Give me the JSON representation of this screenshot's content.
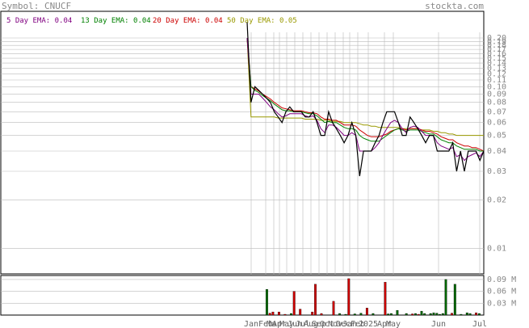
{
  "header": {
    "symbol_label": "Symbol: CNUCF",
    "brand": "stockta.com"
  },
  "legend": [
    {
      "label": "5 Day EMA: 0.04",
      "color": "#800080"
    },
    {
      "label": "13 Day EMA: 0.04",
      "color": "#008000"
    },
    {
      "label": "20 Day EMA: 0.04",
      "color": "#cc0000"
    },
    {
      "label": "50 Day EMA: 0.05",
      "color": "#999900"
    }
  ],
  "colors": {
    "price": "#000000",
    "grid": "#bbbbbb",
    "volume_up": "#006600",
    "volume_down": "#cc0000",
    "axis_text": "#888888"
  },
  "chart_data": [
    {
      "type": "line",
      "scale": "log",
      "ylim": [
        0.006,
        0.2
      ],
      "y_ticks": [
        "0.20",
        "0.19",
        "0.18",
        "0.17",
        "0.16",
        "0.15",
        "0.14",
        "0.13",
        "0.12",
        "0.11",
        "0.10",
        "0.09",
        "0.08",
        "0.07",
        "0.06",
        "0.05",
        "0.04",
        "0.03",
        "0.02",
        "0.01"
      ],
      "x_ticks": [
        "Jan",
        "Feb",
        "Mar",
        "Apr",
        "May",
        "Jun",
        "Jul",
        "Aug",
        "Sep",
        "Oct",
        "Nov",
        "Dec",
        "Jan",
        "Feb",
        "2025",
        "Apr",
        "May",
        "Jun",
        "Jul"
      ],
      "grid": true,
      "series": [
        {
          "name": "price",
          "values": [
            0.25,
            0.08,
            0.1,
            0.095,
            0.09,
            0.085,
            0.08,
            0.07,
            0.065,
            0.06,
            0.07,
            0.075,
            0.07,
            0.07,
            0.07,
            0.065,
            0.065,
            0.07,
            0.06,
            0.05,
            0.05,
            0.07,
            0.06,
            0.055,
            0.05,
            0.045,
            0.05,
            0.06,
            0.05,
            0.028,
            0.04,
            0.04,
            0.04,
            0.045,
            0.05,
            0.06,
            0.07,
            0.07,
            0.07,
            0.06,
            0.05,
            0.05,
            0.065,
            0.06,
            0.055,
            0.05,
            0.045,
            0.05,
            0.05,
            0.04,
            0.04,
            0.04,
            0.04,
            0.045,
            0.03,
            0.04,
            0.03,
            0.04,
            0.04,
            0.04,
            0.035,
            0.04
          ]
        },
        {
          "name": "5 Day EMA",
          "values": [
            0.2,
            0.09,
            0.09,
            0.09,
            0.085,
            0.08,
            0.075,
            0.072,
            0.068,
            0.065,
            0.066,
            0.068,
            0.068,
            0.068,
            0.068,
            0.066,
            0.065,
            0.066,
            0.062,
            0.055,
            0.052,
            0.058,
            0.058,
            0.056,
            0.053,
            0.05,
            0.05,
            0.052,
            0.05,
            0.04,
            0.04,
            0.04,
            0.04,
            0.042,
            0.045,
            0.05,
            0.055,
            0.06,
            0.062,
            0.06,
            0.055,
            0.052,
            0.056,
            0.057,
            0.056,
            0.053,
            0.05,
            0.05,
            0.05,
            0.045,
            0.043,
            0.042,
            0.041,
            0.042,
            0.037,
            0.038,
            0.035,
            0.037,
            0.038,
            0.039,
            0.037,
            0.04
          ]
        },
        {
          "name": "13 Day EMA",
          "values": [
            0.2,
            0.1,
            0.095,
            0.092,
            0.088,
            0.085,
            0.082,
            0.078,
            0.075,
            0.072,
            0.071,
            0.071,
            0.07,
            0.07,
            0.07,
            0.069,
            0.068,
            0.068,
            0.066,
            0.063,
            0.06,
            0.061,
            0.06,
            0.06,
            0.058,
            0.056,
            0.055,
            0.055,
            0.054,
            0.05,
            0.048,
            0.047,
            0.046,
            0.046,
            0.046,
            0.048,
            0.05,
            0.052,
            0.054,
            0.055,
            0.054,
            0.053,
            0.054,
            0.054,
            0.054,
            0.053,
            0.052,
            0.051,
            0.051,
            0.049,
            0.047,
            0.046,
            0.045,
            0.045,
            0.043,
            0.042,
            0.041,
            0.041,
            0.041,
            0.041,
            0.04,
            0.04
          ]
        },
        {
          "name": "20 Day EMA",
          "values": [
            0.2,
            0.1,
            0.097,
            0.094,
            0.09,
            0.087,
            0.084,
            0.08,
            0.077,
            0.074,
            0.073,
            0.072,
            0.071,
            0.071,
            0.071,
            0.07,
            0.069,
            0.069,
            0.068,
            0.065,
            0.063,
            0.063,
            0.062,
            0.062,
            0.06,
            0.058,
            0.058,
            0.058,
            0.057,
            0.054,
            0.052,
            0.05,
            0.049,
            0.049,
            0.049,
            0.05,
            0.051,
            0.053,
            0.054,
            0.055,
            0.055,
            0.054,
            0.055,
            0.055,
            0.055,
            0.054,
            0.053,
            0.053,
            0.052,
            0.051,
            0.049,
            0.048,
            0.047,
            0.047,
            0.045,
            0.044,
            0.043,
            0.043,
            0.042,
            0.042,
            0.041,
            0.04
          ]
        },
        {
          "name": "50 Day EMA",
          "values": [
            0.2,
            0.065,
            0.065,
            0.065,
            0.065,
            0.065,
            0.065,
            0.065,
            0.064,
            0.064,
            0.064,
            0.064,
            0.064,
            0.064,
            0.064,
            0.063,
            0.063,
            0.063,
            0.063,
            0.062,
            0.062,
            0.062,
            0.061,
            0.061,
            0.061,
            0.06,
            0.06,
            0.06,
            0.06,
            0.059,
            0.058,
            0.058,
            0.057,
            0.057,
            0.056,
            0.056,
            0.056,
            0.056,
            0.056,
            0.056,
            0.055,
            0.055,
            0.055,
            0.055,
            0.055,
            0.054,
            0.054,
            0.054,
            0.053,
            0.053,
            0.052,
            0.052,
            0.051,
            0.051,
            0.05,
            0.05,
            0.05,
            0.05,
            0.05,
            0.05,
            0.05,
            0.05
          ]
        }
      ]
    },
    {
      "type": "bar",
      "ylim": [
        0,
        0.1
      ],
      "y_ticks": [
        "0.09 M",
        "0.06 M",
        "0.03 M"
      ],
      "values": [
        0.0,
        0.0,
        0.0,
        0.0,
        0.0,
        0.0,
        0.065,
        0.005,
        0.008,
        0.0,
        0.008,
        0.0,
        0.002,
        0.0,
        0.004,
        0.06,
        0.0,
        0.015,
        0.0,
        0.0,
        0.0,
        0.008,
        0.078,
        0.0,
        0.004,
        0.0,
        0.0,
        0.0,
        0.035,
        0.0,
        0.004,
        0.0,
        0.002,
        0.092,
        0.0,
        0.003,
        0.0,
        0.005,
        0.0,
        0.018,
        0.0,
        0.004,
        0.0,
        0.0,
        0.0,
        0.083,
        0.003,
        0.004,
        0.0,
        0.012,
        0.0,
        0.0,
        0.004,
        0.0,
        0.003,
        0.004,
        0.002,
        0.01,
        0.004,
        0.0,
        0.004,
        0.006,
        0.005,
        0.002,
        0.004,
        0.09,
        0.0,
        0.005,
        0.078,
        0.0,
        0.002,
        0.0,
        0.006,
        0.004,
        0.0,
        0.006,
        0.004,
        0.0
      ],
      "directions": [
        "u",
        "u",
        "u",
        "u",
        "u",
        "u",
        "u",
        "d",
        "d",
        "u",
        "d",
        "u",
        "d",
        "u",
        "u",
        "d",
        "u",
        "d",
        "u",
        "u",
        "u",
        "d",
        "d",
        "u",
        "d",
        "u",
        "u",
        "u",
        "d",
        "u",
        "u",
        "u",
        "u",
        "d",
        "u",
        "u",
        "u",
        "u",
        "u",
        "d",
        "u",
        "u",
        "u",
        "u",
        "u",
        "d",
        "u",
        "u",
        "u",
        "u",
        "u",
        "u",
        "u",
        "u",
        "d",
        "u",
        "d",
        "u",
        "u",
        "u",
        "u",
        "u",
        "u",
        "u",
        "u",
        "u",
        "u",
        "d",
        "u",
        "u",
        "u",
        "u",
        "u",
        "u",
        "u",
        "d",
        "u",
        "u"
      ]
    }
  ]
}
